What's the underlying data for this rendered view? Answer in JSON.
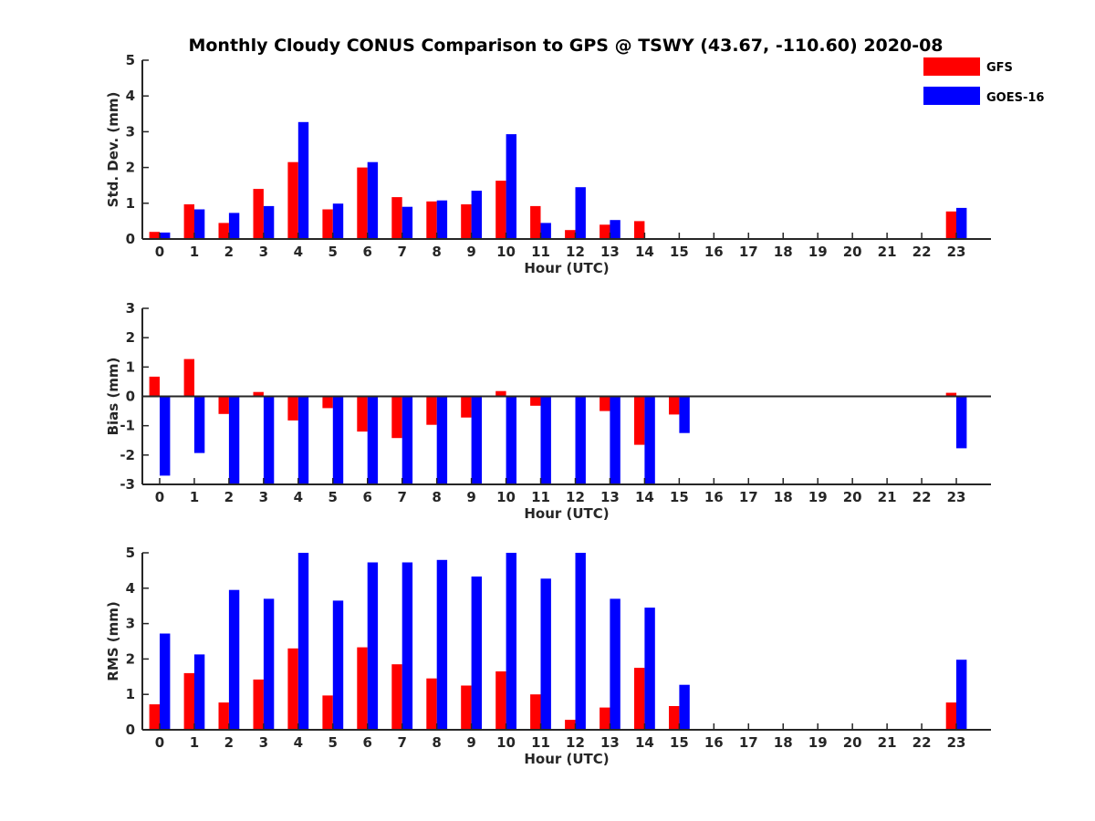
{
  "chart_data": [
    {
      "type": "bar",
      "title": "Monthly Cloudy CONUS Comparison to GPS @ TSWY (43.67, -110.60) 2020-08",
      "xlabel": "Hour (UTC)",
      "ylabel": "Std. Dev. (mm)",
      "ylim": [
        0,
        5
      ],
      "yticks": [
        0,
        1,
        2,
        3,
        4,
        5
      ],
      "categories": [
        "0",
        "1",
        "2",
        "3",
        "4",
        "5",
        "6",
        "7",
        "8",
        "9",
        "10",
        "11",
        "12",
        "13",
        "14",
        "15",
        "16",
        "17",
        "18",
        "19",
        "20",
        "21",
        "22",
        "23"
      ],
      "series": [
        {
          "name": "GFS",
          "color": "#ff0000",
          "values": [
            0.2,
            0.97,
            0.45,
            1.4,
            2.15,
            0.83,
            2.0,
            1.17,
            1.05,
            0.97,
            1.63,
            0.92,
            0.25,
            0.4,
            0.5,
            null,
            null,
            null,
            null,
            null,
            null,
            null,
            null,
            0.77
          ]
        },
        {
          "name": "GOES-16",
          "color": "#0000ff",
          "values": [
            0.18,
            0.83,
            0.73,
            0.92,
            3.27,
            0.99,
            2.15,
            0.9,
            1.08,
            1.35,
            2.93,
            0.45,
            1.45,
            0.53,
            null,
            null,
            null,
            null,
            null,
            null,
            null,
            null,
            null,
            0.87
          ]
        }
      ],
      "legend": "top-right"
    },
    {
      "type": "bar",
      "xlabel": "Hour (UTC)",
      "ylabel": "Bias (mm)",
      "ylim": [
        -3,
        3
      ],
      "yticks": [
        -3,
        -2,
        -1,
        0,
        1,
        2,
        3
      ],
      "zero_line": true,
      "categories": [
        "0",
        "1",
        "2",
        "3",
        "4",
        "5",
        "6",
        "7",
        "8",
        "9",
        "10",
        "11",
        "12",
        "13",
        "14",
        "15",
        "16",
        "17",
        "18",
        "19",
        "20",
        "21",
        "22",
        "23"
      ],
      "series": [
        {
          "name": "GFS",
          "color": "#ff0000",
          "values": [
            0.67,
            1.27,
            -0.6,
            0.15,
            -0.82,
            -0.4,
            -1.2,
            -1.42,
            -0.97,
            -0.72,
            0.18,
            -0.32,
            null,
            -0.5,
            -1.65,
            -0.62,
            null,
            null,
            null,
            null,
            null,
            null,
            null,
            0.12
          ]
        },
        {
          "name": "GOES-16",
          "color": "#0000ff",
          "values": [
            -2.7,
            -1.93,
            -3.0,
            -3.0,
            -3.0,
            -3.0,
            -3.0,
            -3.0,
            -3.0,
            -3.0,
            -3.0,
            -3.0,
            -3.0,
            -3.0,
            -3.0,
            -1.25,
            null,
            null,
            null,
            null,
            null,
            null,
            null,
            -1.77
          ]
        }
      ]
    },
    {
      "type": "bar",
      "xlabel": "Hour (UTC)",
      "ylabel": "RMS (mm)",
      "ylim": [
        0,
        5
      ],
      "yticks": [
        0,
        1,
        2,
        3,
        4,
        5
      ],
      "categories": [
        "0",
        "1",
        "2",
        "3",
        "4",
        "5",
        "6",
        "7",
        "8",
        "9",
        "10",
        "11",
        "12",
        "13",
        "14",
        "15",
        "16",
        "17",
        "18",
        "19",
        "20",
        "21",
        "22",
        "23"
      ],
      "series": [
        {
          "name": "GFS",
          "color": "#ff0000",
          "values": [
            0.72,
            1.6,
            0.77,
            1.42,
            2.3,
            0.97,
            2.33,
            1.85,
            1.45,
            1.25,
            1.65,
            1.0,
            0.28,
            0.63,
            1.75,
            0.67,
            null,
            null,
            null,
            null,
            null,
            null,
            null,
            0.77
          ]
        },
        {
          "name": "GOES-16",
          "color": "#0000ff",
          "values": [
            2.72,
            2.13,
            3.95,
            3.7,
            5.0,
            3.65,
            4.73,
            4.73,
            4.8,
            4.33,
            5.0,
            4.27,
            5.0,
            3.7,
            3.45,
            1.27,
            null,
            null,
            null,
            null,
            null,
            null,
            null,
            1.98
          ]
        }
      ]
    }
  ]
}
